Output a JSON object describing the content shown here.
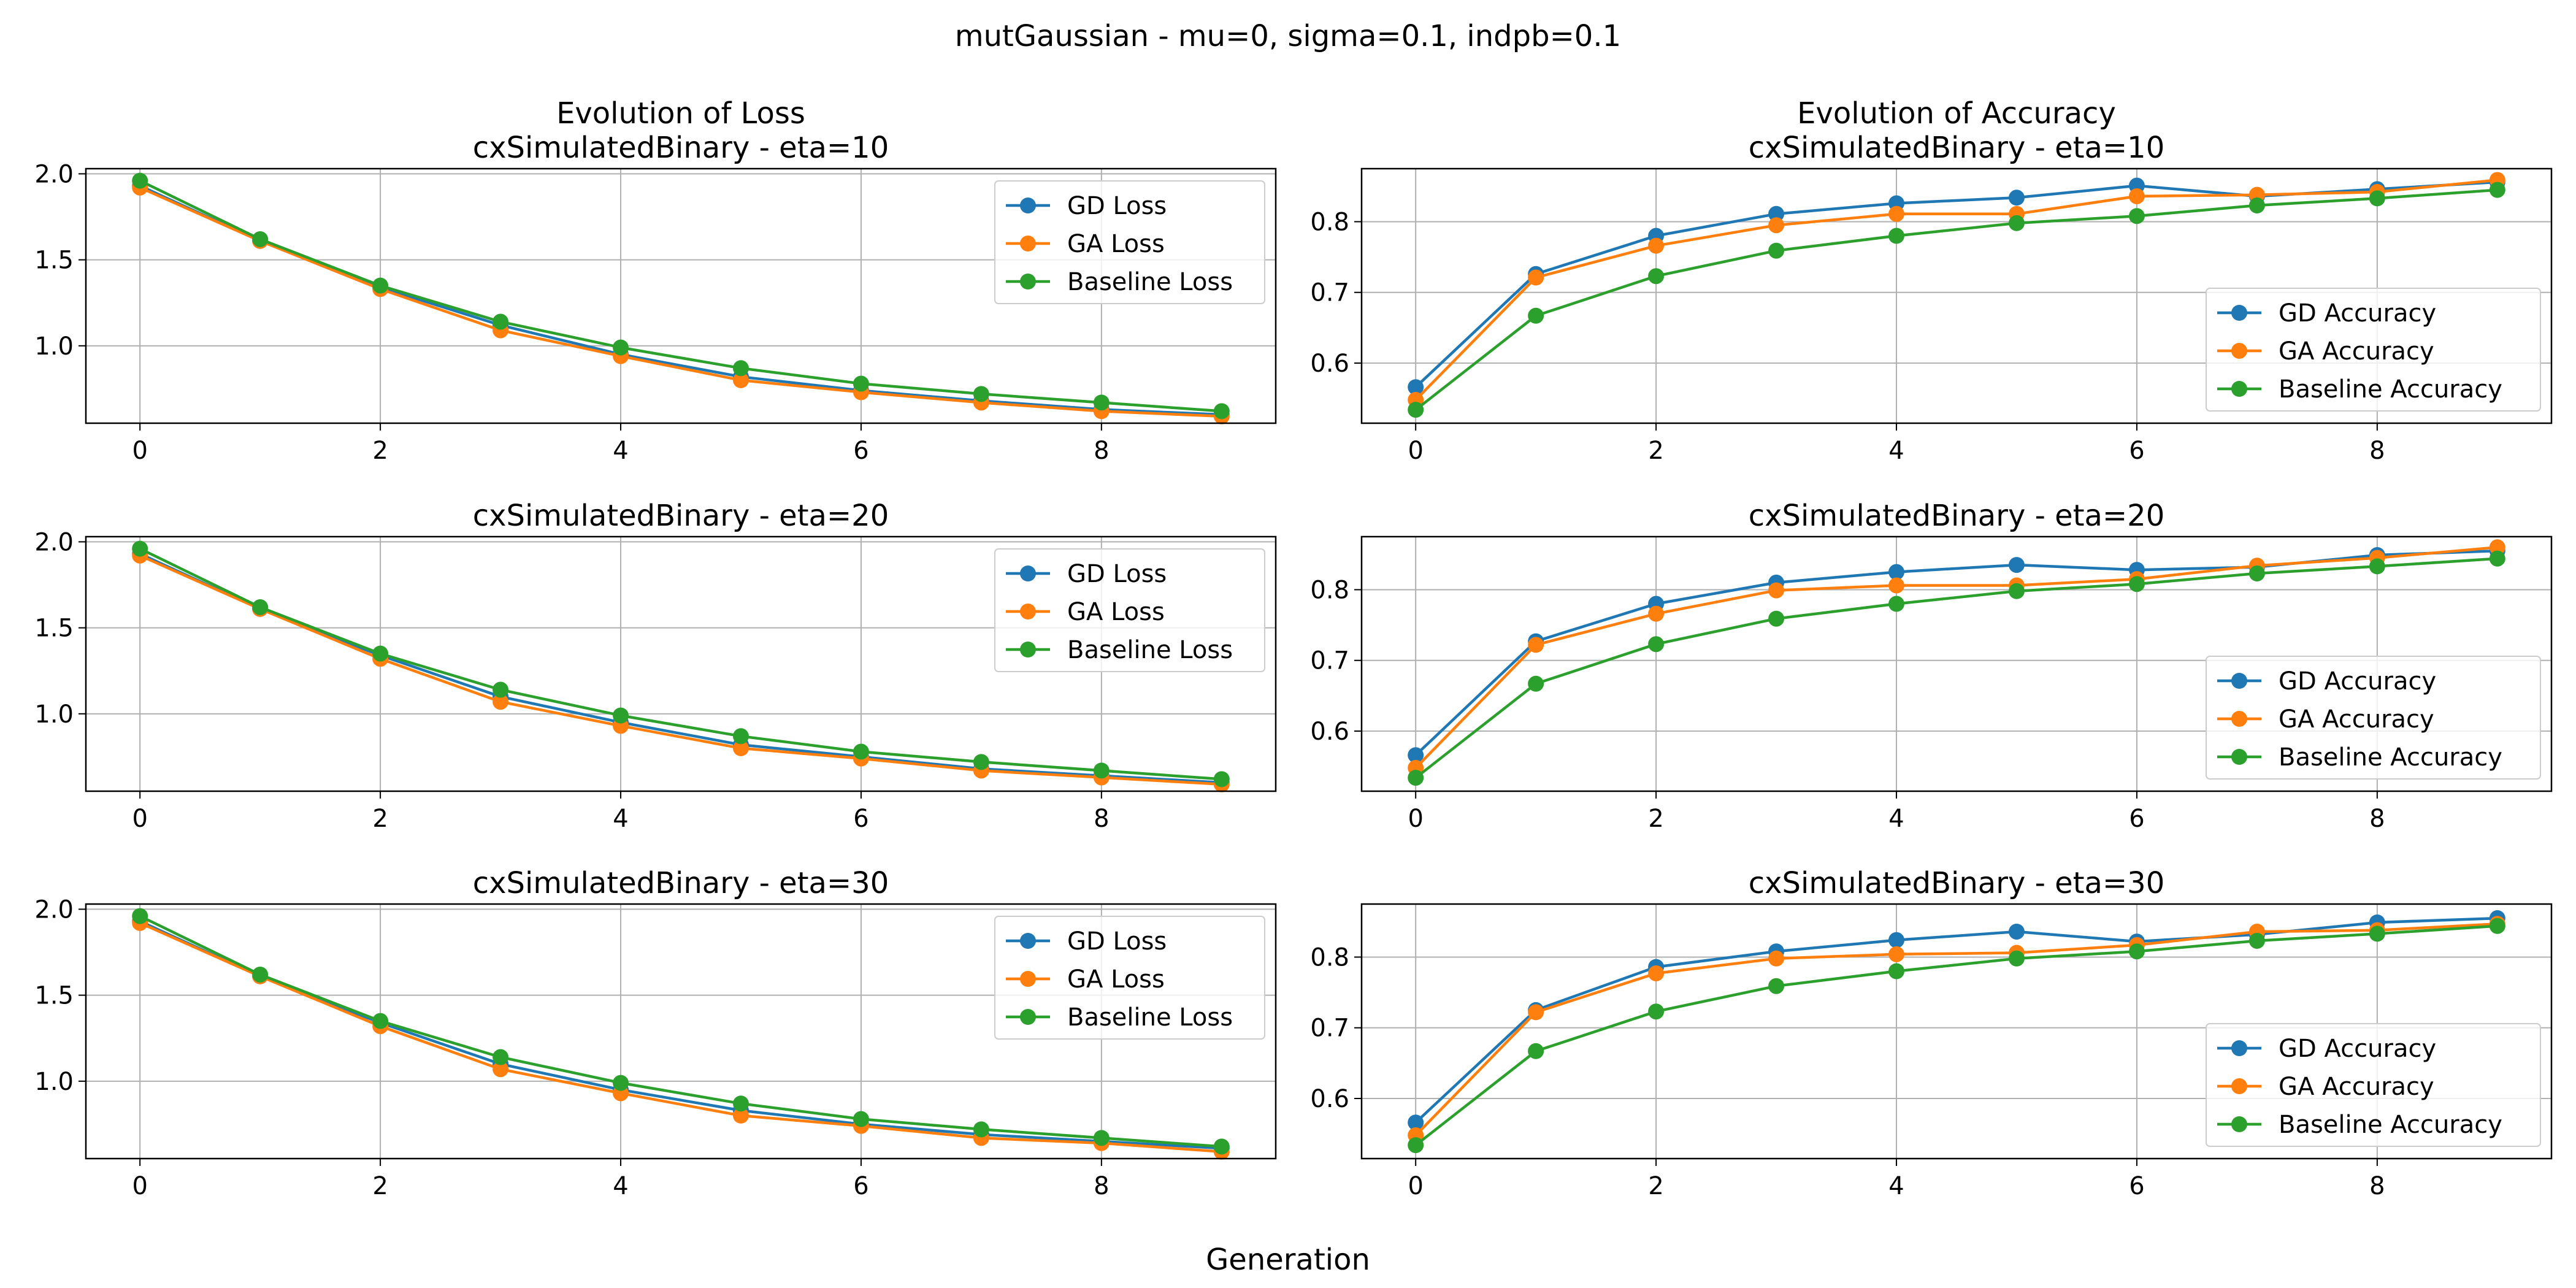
{
  "figure": {
    "suptitle": "mutGaussian - mu=0, sigma=0.1, indpb=0.1",
    "supxlabel": "Generation"
  },
  "colors": {
    "gd": "#1f77b4",
    "ga": "#ff7f0e",
    "baseline": "#2ca02c",
    "grid": "#b0b0b0"
  },
  "chart_data": [
    {
      "type": "line",
      "title": "Evolution of Loss\ncxSimulatedBinary - eta=10",
      "x": [
        0,
        1,
        2,
        3,
        4,
        5,
        6,
        7,
        8,
        9
      ],
      "xticks": [
        0,
        2,
        4,
        6,
        8
      ],
      "ylim": [
        0.55,
        2.03
      ],
      "yticks": [
        1.0,
        1.5,
        2.0
      ],
      "yticklabels": [
        "1.0",
        "1.5",
        "2.0"
      ],
      "grid": true,
      "legend": "upper right",
      "series": [
        {
          "name": "GD Loss",
          "color": "gd",
          "values": [
            1.93,
            1.61,
            1.34,
            1.12,
            0.95,
            0.82,
            0.74,
            0.68,
            0.63,
            0.6
          ]
        },
        {
          "name": "GA Loss",
          "color": "ga",
          "values": [
            1.92,
            1.61,
            1.33,
            1.09,
            0.94,
            0.8,
            0.73,
            0.67,
            0.62,
            0.59
          ]
        },
        {
          "name": "Baseline Loss",
          "color": "baseline",
          "values": [
            1.96,
            1.62,
            1.35,
            1.14,
            0.99,
            0.87,
            0.78,
            0.72,
            0.67,
            0.62
          ]
        }
      ]
    },
    {
      "type": "line",
      "title": "Evolution of Accuracy\ncxSimulatedBinary - eta=10",
      "x": [
        0,
        1,
        2,
        3,
        4,
        5,
        6,
        7,
        8,
        9
      ],
      "xticks": [
        0,
        2,
        4,
        6,
        8
      ],
      "ylim": [
        0.515,
        0.875
      ],
      "yticks": [
        0.6,
        0.7,
        0.8
      ],
      "yticklabels": [
        "0.6",
        "0.7",
        "0.8"
      ],
      "grid": true,
      "legend": "lower right",
      "series": [
        {
          "name": "GD Accuracy",
          "color": "gd",
          "values": [
            0.566,
            0.726,
            0.78,
            0.811,
            0.826,
            0.834,
            0.851,
            0.836,
            0.846,
            0.856
          ]
        },
        {
          "name": "GA Accuracy",
          "color": "ga",
          "values": [
            0.548,
            0.721,
            0.766,
            0.795,
            0.811,
            0.811,
            0.836,
            0.838,
            0.842,
            0.859
          ]
        },
        {
          "name": "Baseline Accuracy",
          "color": "baseline",
          "values": [
            0.534,
            0.667,
            0.723,
            0.759,
            0.78,
            0.798,
            0.808,
            0.823,
            0.833,
            0.845
          ]
        }
      ]
    },
    {
      "type": "line",
      "title": "cxSimulatedBinary - eta=20",
      "x": [
        0,
        1,
        2,
        3,
        4,
        5,
        6,
        7,
        8,
        9
      ],
      "xticks": [
        0,
        2,
        4,
        6,
        8
      ],
      "ylim": [
        0.55,
        2.03
      ],
      "yticks": [
        1.0,
        1.5,
        2.0
      ],
      "yticklabels": [
        "1.0",
        "1.5",
        "2.0"
      ],
      "grid": true,
      "legend": "upper right",
      "series": [
        {
          "name": "GD Loss",
          "color": "gd",
          "values": [
            1.93,
            1.61,
            1.34,
            1.1,
            0.95,
            0.82,
            0.75,
            0.68,
            0.64,
            0.6
          ]
        },
        {
          "name": "GA Loss",
          "color": "ga",
          "values": [
            1.92,
            1.61,
            1.32,
            1.07,
            0.93,
            0.8,
            0.74,
            0.67,
            0.63,
            0.59
          ]
        },
        {
          "name": "Baseline Loss",
          "color": "baseline",
          "values": [
            1.96,
            1.62,
            1.35,
            1.14,
            0.99,
            0.87,
            0.78,
            0.72,
            0.67,
            0.62
          ]
        }
      ]
    },
    {
      "type": "line",
      "title": "cxSimulatedBinary - eta=20",
      "x": [
        0,
        1,
        2,
        3,
        4,
        5,
        6,
        7,
        8,
        9
      ],
      "xticks": [
        0,
        2,
        4,
        6,
        8
      ],
      "ylim": [
        0.515,
        0.875
      ],
      "yticks": [
        0.6,
        0.7,
        0.8
      ],
      "yticklabels": [
        "0.6",
        "0.7",
        "0.8"
      ],
      "grid": true,
      "legend": "lower right",
      "series": [
        {
          "name": "GD Accuracy",
          "color": "gd",
          "values": [
            0.566,
            0.727,
            0.78,
            0.81,
            0.825,
            0.835,
            0.828,
            0.832,
            0.849,
            0.855
          ]
        },
        {
          "name": "GA Accuracy",
          "color": "ga",
          "values": [
            0.548,
            0.722,
            0.766,
            0.799,
            0.806,
            0.806,
            0.815,
            0.834,
            0.845,
            0.86
          ]
        },
        {
          "name": "Baseline Accuracy",
          "color": "baseline",
          "values": [
            0.534,
            0.667,
            0.723,
            0.759,
            0.78,
            0.798,
            0.808,
            0.823,
            0.833,
            0.844
          ]
        }
      ]
    },
    {
      "type": "line",
      "title": "cxSimulatedBinary - eta=30",
      "x": [
        0,
        1,
        2,
        3,
        4,
        5,
        6,
        7,
        8,
        9
      ],
      "xticks": [
        0,
        2,
        4,
        6,
        8
      ],
      "ylim": [
        0.55,
        2.03
      ],
      "yticks": [
        1.0,
        1.5,
        2.0
      ],
      "yticklabels": [
        "1.0",
        "1.5",
        "2.0"
      ],
      "grid": true,
      "legend": "upper right",
      "series": [
        {
          "name": "GD Loss",
          "color": "gd",
          "values": [
            1.93,
            1.61,
            1.34,
            1.1,
            0.95,
            0.83,
            0.75,
            0.69,
            0.65,
            0.61
          ]
        },
        {
          "name": "GA Loss",
          "color": "ga",
          "values": [
            1.92,
            1.61,
            1.32,
            1.07,
            0.93,
            0.8,
            0.74,
            0.67,
            0.64,
            0.59
          ]
        },
        {
          "name": "Baseline Loss",
          "color": "baseline",
          "values": [
            1.96,
            1.62,
            1.35,
            1.14,
            0.99,
            0.87,
            0.78,
            0.72,
            0.67,
            0.62
          ]
        }
      ]
    },
    {
      "type": "line",
      "title": "cxSimulatedBinary - eta=30",
      "x": [
        0,
        1,
        2,
        3,
        4,
        5,
        6,
        7,
        8,
        9
      ],
      "xticks": [
        0,
        2,
        4,
        6,
        8
      ],
      "ylim": [
        0.515,
        0.875
      ],
      "yticks": [
        0.6,
        0.7,
        0.8
      ],
      "yticklabels": [
        "0.6",
        "0.7",
        "0.8"
      ],
      "grid": true,
      "legend": "lower right",
      "series": [
        {
          "name": "GD Accuracy",
          "color": "gd",
          "values": [
            0.566,
            0.725,
            0.786,
            0.808,
            0.824,
            0.836,
            0.822,
            0.832,
            0.849,
            0.855
          ]
        },
        {
          "name": "GA Accuracy",
          "color": "ga",
          "values": [
            0.548,
            0.722,
            0.777,
            0.798,
            0.804,
            0.806,
            0.817,
            0.836,
            0.838,
            0.847
          ]
        },
        {
          "name": "Baseline Accuracy",
          "color": "baseline",
          "values": [
            0.534,
            0.667,
            0.723,
            0.759,
            0.78,
            0.798,
            0.808,
            0.823,
            0.833,
            0.844
          ]
        }
      ]
    }
  ]
}
